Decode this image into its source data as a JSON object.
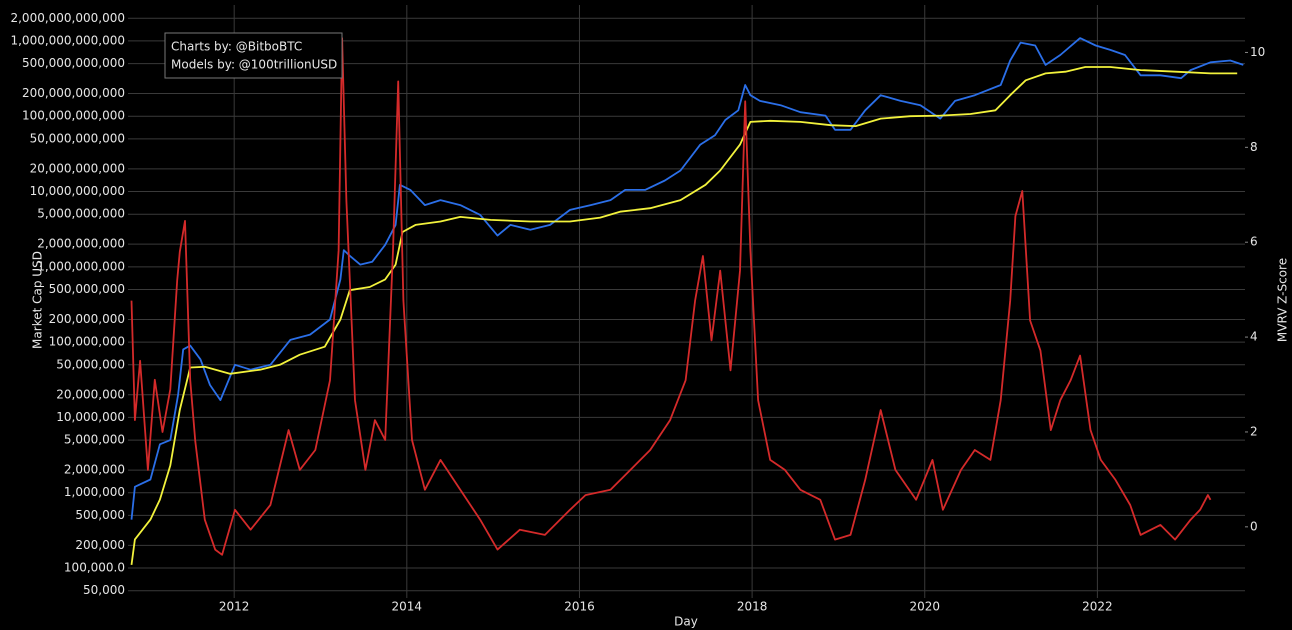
{
  "chart_data": {
    "type": "line",
    "annotations": [
      "Charts by: @BitboBTC",
      "Models by: @100trillionUSD"
    ],
    "xlabel": "Day",
    "ylabel": "Market Cap USD",
    "y2label": "MVRV Z-Score",
    "yscale": "log",
    "grid": true,
    "xlim": [
      2010.77,
      2023.71
    ],
    "xticks": [
      2012,
      2014,
      2016,
      2018,
      2020,
      2022
    ],
    "ylim": [
      40000,
      3000000000000
    ],
    "yticks": [
      {
        "value": 50000,
        "label": "50,000"
      },
      {
        "value": 100000,
        "label": "100,000.0"
      },
      {
        "value": 200000,
        "label": "200,000"
      },
      {
        "value": 500000,
        "label": "500,000"
      },
      {
        "value": 1000000,
        "label": "1,000,000"
      },
      {
        "value": 2000000,
        "label": "2,000,000"
      },
      {
        "value": 5000000,
        "label": "5,000,000"
      },
      {
        "value": 10000000,
        "label": "10,000,000"
      },
      {
        "value": 20000000,
        "label": "20,000,000"
      },
      {
        "value": 50000000,
        "label": "50,000,000"
      },
      {
        "value": 100000000,
        "label": "100,000,000"
      },
      {
        "value": 200000000,
        "label": "200,000,000"
      },
      {
        "value": 500000000,
        "label": "500,000,000"
      },
      {
        "value": 1000000000,
        "label": "1,000,000,000"
      },
      {
        "value": 2000000000,
        "label": "2,000,000,000"
      },
      {
        "value": 5000000000,
        "label": "5,000,000,000"
      },
      {
        "value": 10000000000,
        "label": "10,000,000,000"
      },
      {
        "value": 20000000000,
        "label": "20,000,000,000"
      },
      {
        "value": 50000000000,
        "label": "50,000,000,000"
      },
      {
        "value": 100000000000,
        "label": "100,000,000,000"
      },
      {
        "value": 200000000000,
        "label": "200,000,000,000"
      },
      {
        "value": 500000000000,
        "label": "500,000,000,000"
      },
      {
        "value": 1000000000000,
        "label": "1,000,000,000,000"
      },
      {
        "value": 2000000000000,
        "label": "2,000,000,000,000"
      }
    ],
    "y2lim": [
      -1.5,
      11
    ],
    "y2ticks": [
      0,
      2,
      4,
      6,
      8,
      10
    ],
    "series": [
      {
        "color": "#2b6fe8",
        "x": [
          2010.81,
          2010.85,
          2011.03,
          2011.14,
          2011.26,
          2011.35,
          2011.41,
          2011.49,
          2011.61,
          2011.72,
          2011.84,
          2012.01,
          2012.19,
          2012.42,
          2012.65,
          2012.88,
          2013.11,
          2013.23,
          2013.27,
          2013.34,
          2013.46,
          2013.6,
          2013.75,
          2013.87,
          2013.92,
          2014.04,
          2014.21,
          2014.39,
          2014.62,
          2014.85,
          2015.05,
          2015.2,
          2015.43,
          2015.66,
          2015.89,
          2016.13,
          2016.36,
          2016.53,
          2016.76,
          2016.99,
          2017.17,
          2017.4,
          2017.57,
          2017.69,
          2017.84,
          2017.92,
          2017.98,
          2018.09,
          2018.33,
          2018.56,
          2018.85,
          2018.96,
          2019.14,
          2019.31,
          2019.49,
          2019.72,
          2019.95,
          2020.18,
          2020.35,
          2020.58,
          2020.88,
          2020.99,
          2021.11,
          2021.28,
          2021.4,
          2021.57,
          2021.8,
          2021.98,
          2022.15,
          2022.32,
          2022.5,
          2022.73,
          2022.97,
          2023.08,
          2023.31,
          2023.54,
          2023.69
        ],
        "values": [
          440000,
          1200000,
          1500000,
          4400000,
          5000000,
          20000000,
          80000000,
          90000000,
          59000000,
          27000000,
          17000000,
          50000000,
          43000000,
          50000000,
          107000000,
          126000000,
          200000000,
          680000000,
          1670000000,
          1400000000,
          1070000000,
          1170000000,
          1960000000,
          3600000000,
          12300000000,
          10500000000,
          6600000000,
          7700000000,
          6600000000,
          4900000000,
          2600000000,
          3600000000,
          3100000000,
          3600000000,
          5700000000,
          6600000000,
          7700000000,
          10500000000,
          10500000000,
          14000000000,
          19000000000,
          42000000000,
          56000000000,
          89000000000,
          120000000000,
          260000000000,
          190000000000,
          160000000000,
          140000000000,
          113000000000,
          102000000000,
          66000000000,
          66000000000,
          120000000000,
          190000000000,
          160000000000,
          140000000000,
          93000000000,
          160000000000,
          190000000000,
          260000000000,
          550000000000,
          950000000000,
          870000000000,
          480000000000,
          650000000000,
          1090000000000,
          870000000000,
          760000000000,
          650000000000,
          350000000000,
          350000000000,
          320000000000,
          410000000000,
          520000000000,
          550000000000,
          480000000000
        ]
      },
      {
        "color": "#f2f23c",
        "x": [
          2010.81,
          2010.85,
          2011.03,
          2011.14,
          2011.26,
          2011.37,
          2011.49,
          2011.66,
          2011.95,
          2012.3,
          2012.53,
          2012.76,
          2013.05,
          2013.23,
          2013.34,
          2013.57,
          2013.75,
          2013.87,
          2013.95,
          2014.1,
          2014.39,
          2014.62,
          2014.97,
          2015.43,
          2015.89,
          2016.24,
          2016.47,
          2016.82,
          2017.17,
          2017.46,
          2017.63,
          2017.86,
          2017.98,
          2018.21,
          2018.56,
          2018.91,
          2019.2,
          2019.49,
          2019.83,
          2020.18,
          2020.53,
          2020.82,
          2020.99,
          2021.17,
          2021.4,
          2021.63,
          2021.86,
          2022.15,
          2022.5,
          2022.91,
          2023.31,
          2023.62
        ],
        "values": [
          110000,
          240000,
          440000,
          810000,
          2300000,
          12600000,
          46000000,
          47000000,
          38000000,
          43000000,
          50000000,
          68000000,
          87000000,
          200000000,
          490000000,
          540000000,
          680000000,
          1070000000,
          2900000000,
          3600000000,
          4000000000,
          4600000000,
          4200000000,
          4000000000,
          4000000000,
          4500000000,
          5400000000,
          6000000000,
          7700000000,
          12300000000,
          19000000000,
          42000000000,
          84000000000,
          87000000000,
          84000000000,
          76000000000,
          74000000000,
          93000000000,
          100000000000,
          102000000000,
          107000000000,
          120000000000,
          190000000000,
          300000000000,
          370000000000,
          390000000000,
          450000000000,
          450000000000,
          410000000000,
          390000000000,
          370000000000,
          370000000000
        ]
      },
      {
        "color": "#d42a2a",
        "axis": "y2",
        "x": [
          2010.81,
          2010.85,
          2010.91,
          2011.0,
          2011.08,
          2011.17,
          2011.26,
          2011.34,
          2011.37,
          2011.43,
          2011.49,
          2011.55,
          2011.66,
          2011.78,
          2011.86,
          2012.01,
          2012.19,
          2012.42,
          2012.63,
          2012.76,
          2012.94,
          2013.11,
          2013.21,
          2013.25,
          2013.3,
          2013.4,
          2013.52,
          2013.63,
          2013.75,
          2013.84,
          2013.9,
          2013.96,
          2014.06,
          2014.21,
          2014.39,
          2014.62,
          2014.85,
          2015.05,
          2015.31,
          2015.6,
          2015.89,
          2016.07,
          2016.36,
          2016.59,
          2016.82,
          2017.05,
          2017.23,
          2017.34,
          2017.43,
          2017.53,
          2017.63,
          2017.75,
          2017.86,
          2017.92,
          2017.98,
          2018.07,
          2018.21,
          2018.38,
          2018.56,
          2018.79,
          2018.96,
          2019.14,
          2019.31,
          2019.49,
          2019.66,
          2019.9,
          2020.09,
          2020.21,
          2020.42,
          2020.58,
          2020.76,
          2020.88,
          2020.99,
          2021.05,
          2021.13,
          2021.22,
          2021.34,
          2021.46,
          2021.57,
          2021.69,
          2021.8,
          2021.92,
          2022.04,
          2022.21,
          2022.38,
          2022.5,
          2022.73,
          2022.9,
          2023.08,
          2023.19,
          2023.28,
          2023.31
        ],
        "values": [
          4.77,
          2.25,
          3.5,
          1.2,
          3.1,
          2.0,
          2.9,
          5.2,
          5.8,
          6.45,
          3.1,
          1.8,
          0.15,
          -0.48,
          -0.59,
          0.36,
          -0.06,
          0.46,
          2.04,
          1.2,
          1.62,
          3.09,
          5.82,
          10.3,
          6.87,
          2.67,
          1.2,
          2.25,
          1.83,
          5.82,
          9.39,
          4.77,
          1.83,
          0.78,
          1.41,
          0.78,
          0.15,
          -0.48,
          -0.06,
          -0.17,
          0.36,
          0.67,
          0.78,
          1.2,
          1.62,
          2.25,
          3.09,
          4.77,
          5.71,
          3.93,
          5.4,
          3.3,
          5.4,
          8.97,
          5.82,
          2.67,
          1.41,
          1.2,
          0.78,
          0.57,
          -0.27,
          -0.17,
          0.99,
          2.46,
          1.2,
          0.57,
          1.41,
          0.36,
          1.2,
          1.62,
          1.41,
          2.67,
          4.77,
          6.55,
          7.08,
          4.35,
          3.72,
          2.04,
          2.67,
          3.09,
          3.61,
          2.04,
          1.41,
          0.99,
          0.46,
          -0.17,
          0.04,
          -0.27,
          0.15,
          0.36,
          0.67,
          0.57
        ]
      }
    ]
  }
}
